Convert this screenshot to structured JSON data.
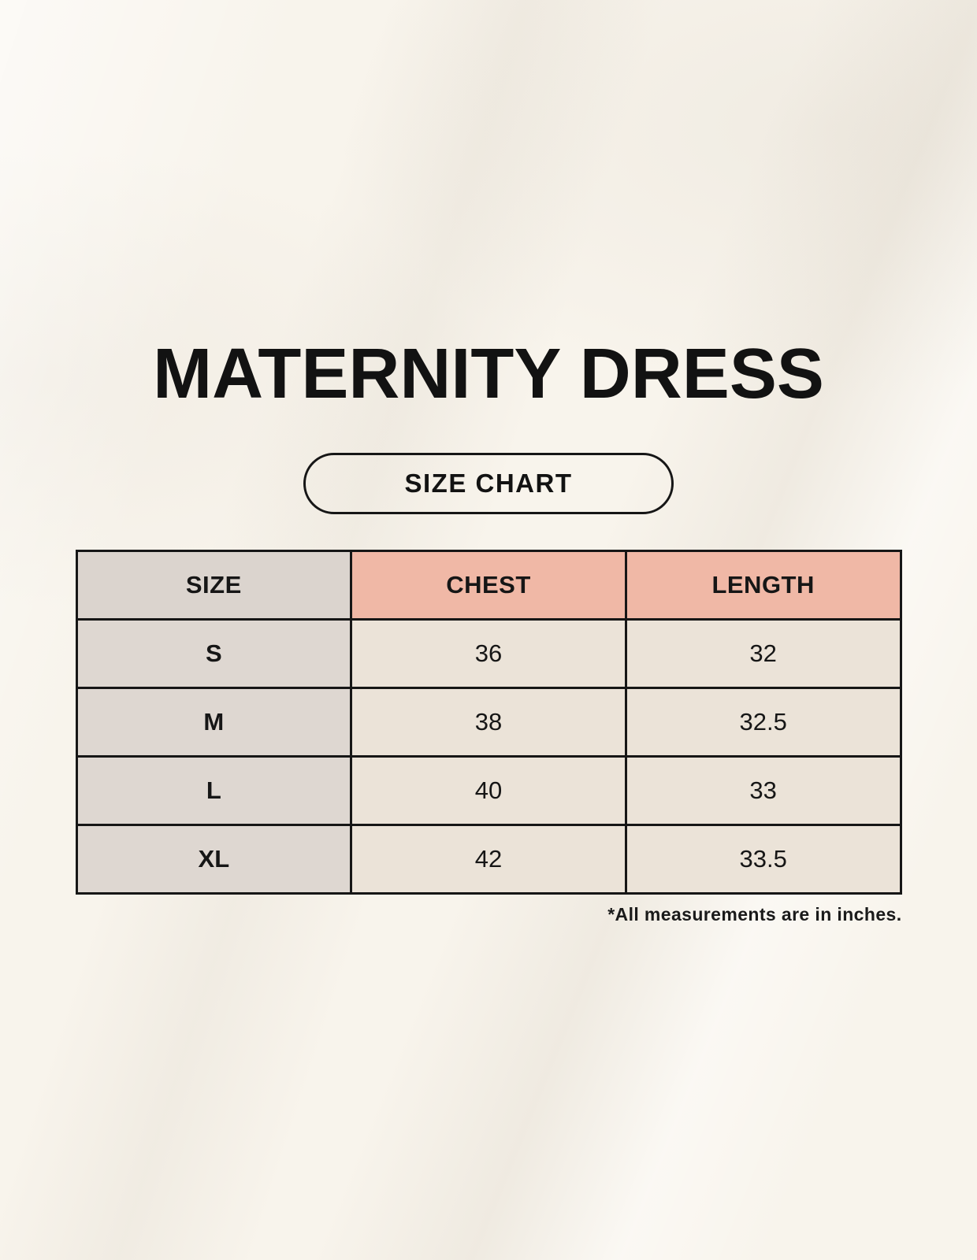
{
  "page": {
    "title": "MATERNITY DRESS",
    "badge_label": "SIZE CHART",
    "footnote": "*All measurements are in inches."
  },
  "colors": {
    "page_background": "#f8f4ec",
    "table_border": "#161616",
    "header_size_background": "#dbd4ce",
    "header_measurement_background": "#f0b8a6",
    "row_label_background": "#ded7d1",
    "row_value_background": "#ebe3d8",
    "text": "#161616"
  },
  "chart_data": {
    "type": "table",
    "title": "MATERNITY DRESS",
    "columns": [
      "SIZE",
      "CHEST",
      "LENGTH"
    ],
    "rows": [
      [
        "S",
        "36",
        "32"
      ],
      [
        "M",
        "38",
        "32.5"
      ],
      [
        "L",
        "40",
        "33"
      ],
      [
        "XL",
        "42",
        "33.5"
      ]
    ],
    "units_note": "*All measurements are in inches."
  }
}
